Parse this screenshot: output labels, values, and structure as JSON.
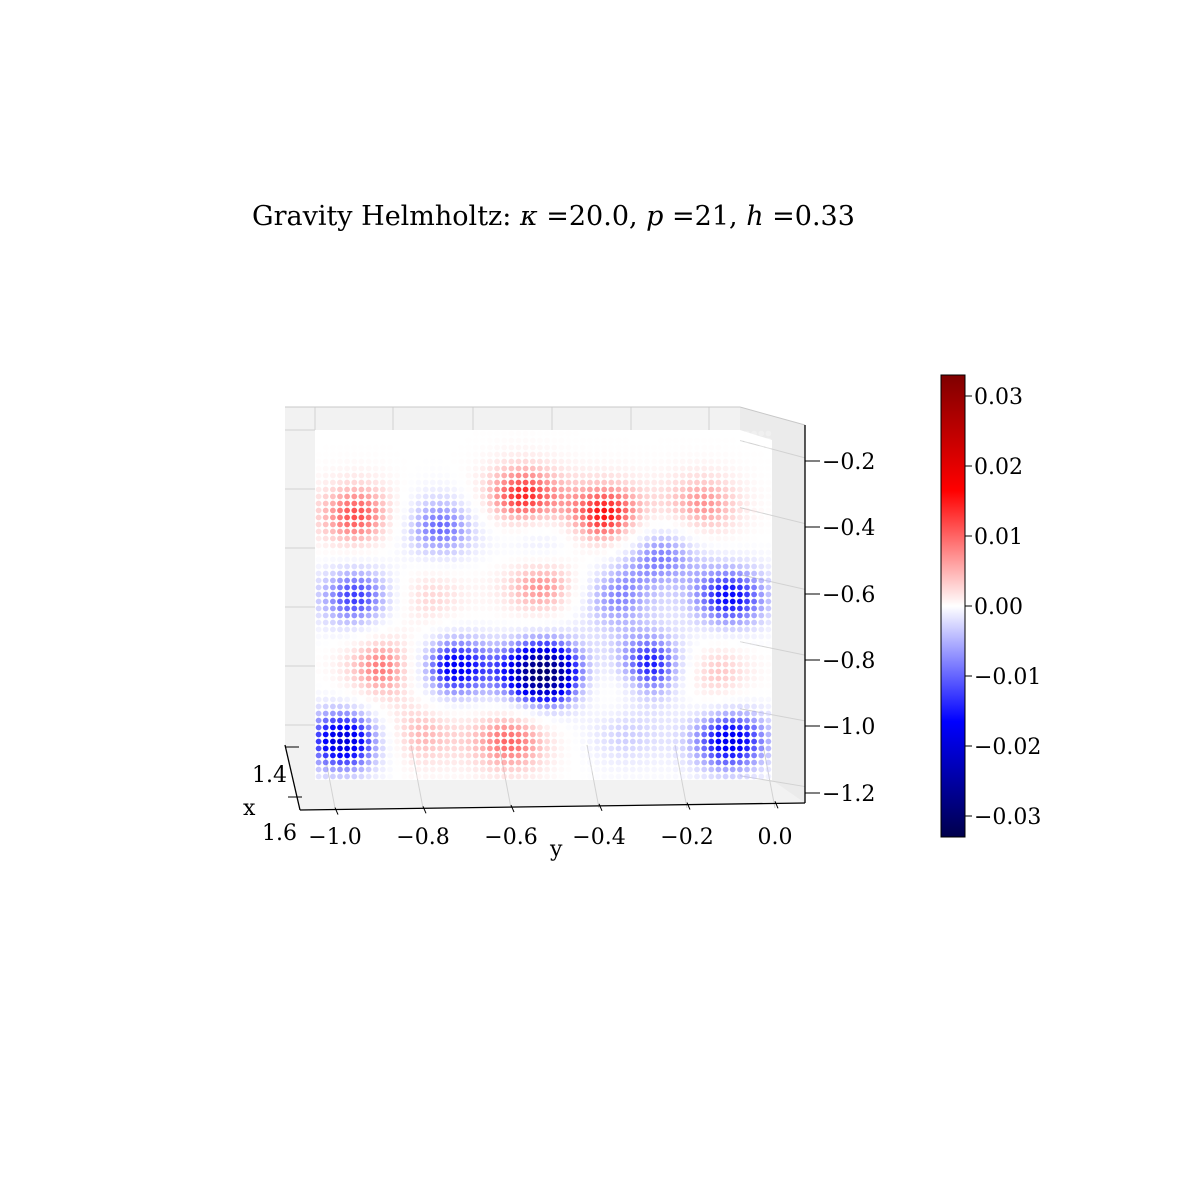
{
  "chart_data": {
    "type": "scatter",
    "title": "Gravity Helmholtz: κ =20.0, p =21, h =0.33",
    "title_parts": {
      "prefix": "Gravity Helmholtz: ",
      "kappa_sym": "κ",
      "kappa_val": " =20.0, ",
      "p_sym": "p",
      "p_val": " =21, ",
      "h_sym": "h",
      "h_val": " =0.33"
    },
    "xlabel": "x",
    "ylabel": "y",
    "zlabel": "",
    "x_ticks": [
      "1.4",
      "1.6"
    ],
    "y_ticks": [
      "−1.0",
      "−0.8",
      "−0.6",
      "−0.4",
      "−0.2",
      "0.0"
    ],
    "z_ticks": [
      "−0.2",
      "−0.4",
      "−0.6",
      "−0.8",
      "−1.0",
      "−1.2"
    ],
    "xlim": [
      1.35,
      1.65
    ],
    "ylim": [
      -1.05,
      0.05
    ],
    "zlim": [
      -1.25,
      -0.1
    ],
    "colormap": "seismic",
    "colormap_stops": [
      "#00004c",
      "#0000ff",
      "#ffffff",
      "#ff0000",
      "#7f0000"
    ],
    "colorbar": {
      "range": [
        -0.033,
        0.033
      ],
      "ticks": [
        "0.03",
        "0.02",
        "0.01",
        "0.00",
        "−0.01",
        "−0.02",
        "−0.03"
      ],
      "tick_values": [
        0.03,
        0.02,
        0.01,
        0.0,
        -0.01,
        -0.02,
        -0.03
      ]
    },
    "field_blobs": [
      {
        "y": -0.95,
        "z": -0.38,
        "value": 0.013
      },
      {
        "y": -0.55,
        "z": -0.32,
        "value": 0.015
      },
      {
        "y": -0.35,
        "z": -0.38,
        "value": 0.016
      },
      {
        "y": -0.12,
        "z": -0.35,
        "value": 0.01
      },
      {
        "y": -0.75,
        "z": -0.42,
        "value": -0.012
      },
      {
        "y": -0.5,
        "z": -0.48,
        "value": -0.008
      },
      {
        "y": -0.22,
        "z": -0.5,
        "value": -0.011
      },
      {
        "y": -0.95,
        "z": -0.65,
        "value": -0.014
      },
      {
        "y": -0.78,
        "z": -0.65,
        "value": 0.006
      },
      {
        "y": -0.5,
        "z": -0.6,
        "value": 0.012
      },
      {
        "y": -0.33,
        "z": -0.65,
        "value": -0.01
      },
      {
        "y": -0.05,
        "z": -0.65,
        "value": -0.016
      },
      {
        "y": -0.88,
        "z": -0.88,
        "value": 0.012
      },
      {
        "y": -0.72,
        "z": -0.88,
        "value": -0.018
      },
      {
        "y": -0.5,
        "z": -0.9,
        "value": -0.03
      },
      {
        "y": -0.32,
        "z": -0.92,
        "value": 0.009
      },
      {
        "y": -0.25,
        "z": -0.88,
        "value": -0.02
      },
      {
        "y": -0.1,
        "z": -0.9,
        "value": 0.008
      },
      {
        "y": -0.98,
        "z": -1.12,
        "value": -0.02
      },
      {
        "y": -0.8,
        "z": -1.1,
        "value": 0.008
      },
      {
        "y": -0.58,
        "z": -1.12,
        "value": 0.012
      },
      {
        "y": -0.3,
        "z": -1.1,
        "value": -0.006
      },
      {
        "y": -0.05,
        "z": -1.12,
        "value": -0.018
      }
    ]
  }
}
